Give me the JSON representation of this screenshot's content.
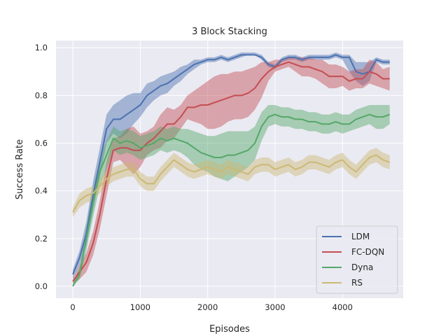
{
  "chart_data": {
    "type": "line",
    "title": "3 Block Stacking",
    "xlabel": "Episodes",
    "ylabel": "Success Rate",
    "xlim": [
      -250,
      4900
    ],
    "ylim": [
      -0.05,
      1.03
    ],
    "xticks": [
      0,
      1000,
      2000,
      3000,
      4000
    ],
    "yticks": [
      0.0,
      0.2,
      0.4,
      0.6,
      0.8,
      1.0
    ],
    "xtick_labels": [
      "0",
      "1000",
      "2000",
      "3000",
      "4000"
    ],
    "ytick_labels": [
      "0.0",
      "0.2",
      "0.4",
      "0.6",
      "0.8",
      "1.0"
    ],
    "grid": true,
    "legend_position": "lower-right",
    "series": [
      {
        "name": "LDM",
        "color": "#4c72b0",
        "x": [
          0,
          100,
          200,
          300,
          400,
          500,
          600,
          700,
          800,
          900,
          1000,
          1100,
          1200,
          1300,
          1400,
          1500,
          1600,
          1700,
          1800,
          1900,
          2000,
          2100,
          2200,
          2300,
          2400,
          2500,
          2600,
          2700,
          2800,
          2900,
          3000,
          3100,
          3200,
          3300,
          3400,
          3500,
          3600,
          3700,
          3800,
          3900,
          4000,
          4100,
          4200,
          4300,
          4400,
          4500,
          4600,
          4700
        ],
        "y": [
          0.05,
          0.12,
          0.22,
          0.38,
          0.52,
          0.66,
          0.7,
          0.7,
          0.72,
          0.74,
          0.76,
          0.8,
          0.82,
          0.84,
          0.85,
          0.87,
          0.89,
          0.91,
          0.93,
          0.94,
          0.95,
          0.95,
          0.96,
          0.95,
          0.96,
          0.97,
          0.97,
          0.97,
          0.96,
          0.93,
          0.92,
          0.95,
          0.96,
          0.96,
          0.95,
          0.96,
          0.96,
          0.96,
          0.96,
          0.97,
          0.96,
          0.96,
          0.9,
          0.89,
          0.9,
          0.95,
          0.94,
          0.94
        ],
        "lower": [
          0.03,
          0.09,
          0.17,
          0.32,
          0.46,
          0.6,
          0.64,
          0.62,
          0.64,
          0.68,
          0.71,
          0.75,
          0.78,
          0.8,
          0.81,
          0.84,
          0.86,
          0.89,
          0.91,
          0.93,
          0.94,
          0.94,
          0.95,
          0.94,
          0.95,
          0.96,
          0.97,
          0.97,
          0.95,
          0.92,
          0.91,
          0.94,
          0.95,
          0.95,
          0.94,
          0.95,
          0.95,
          0.95,
          0.95,
          0.96,
          0.95,
          0.9,
          0.86,
          0.84,
          0.86,
          0.94,
          0.93,
          0.93
        ],
        "upper": [
          0.07,
          0.15,
          0.27,
          0.44,
          0.58,
          0.72,
          0.76,
          0.78,
          0.8,
          0.81,
          0.81,
          0.85,
          0.86,
          0.88,
          0.89,
          0.9,
          0.92,
          0.93,
          0.95,
          0.95,
          0.96,
          0.96,
          0.97,
          0.96,
          0.97,
          0.98,
          0.98,
          0.98,
          0.97,
          0.94,
          0.93,
          0.96,
          0.97,
          0.97,
          0.96,
          0.97,
          0.97,
          0.97,
          0.97,
          0.98,
          0.97,
          0.97,
          0.94,
          0.94,
          0.94,
          0.96,
          0.95,
          0.95
        ]
      },
      {
        "name": "FC-DQN",
        "color": "#c44e52",
        "x": [
          0,
          100,
          200,
          300,
          400,
          500,
          600,
          700,
          800,
          900,
          1000,
          1100,
          1200,
          1300,
          1400,
          1500,
          1600,
          1700,
          1800,
          1900,
          2000,
          2100,
          2200,
          2300,
          2400,
          2500,
          2600,
          2700,
          2800,
          2900,
          3000,
          3100,
          3200,
          3300,
          3400,
          3500,
          3600,
          3700,
          3800,
          3900,
          4000,
          4100,
          4200,
          4300,
          4400,
          4500,
          4600,
          4700
        ],
        "y": [
          0.02,
          0.06,
          0.1,
          0.18,
          0.3,
          0.45,
          0.57,
          0.58,
          0.58,
          0.57,
          0.57,
          0.6,
          0.62,
          0.65,
          0.68,
          0.68,
          0.71,
          0.75,
          0.75,
          0.76,
          0.76,
          0.77,
          0.78,
          0.79,
          0.8,
          0.8,
          0.81,
          0.83,
          0.87,
          0.9,
          0.92,
          0.93,
          0.94,
          0.93,
          0.92,
          0.92,
          0.91,
          0.9,
          0.88,
          0.88,
          0.88,
          0.86,
          0.87,
          0.87,
          0.9,
          0.89,
          0.87,
          0.87
        ],
        "lower": [
          0.01,
          0.03,
          0.06,
          0.13,
          0.24,
          0.38,
          0.52,
          0.53,
          0.5,
          0.47,
          0.5,
          0.55,
          0.57,
          0.58,
          0.61,
          0.62,
          0.66,
          0.7,
          0.69,
          0.68,
          0.66,
          0.66,
          0.67,
          0.69,
          0.7,
          0.7,
          0.71,
          0.74,
          0.79,
          0.86,
          0.9,
          0.91,
          0.92,
          0.9,
          0.88,
          0.88,
          0.87,
          0.85,
          0.83,
          0.83,
          0.84,
          0.82,
          0.83,
          0.83,
          0.85,
          0.84,
          0.83,
          0.82
        ],
        "upper": [
          0.03,
          0.09,
          0.14,
          0.23,
          0.36,
          0.52,
          0.62,
          0.63,
          0.66,
          0.67,
          0.64,
          0.65,
          0.67,
          0.72,
          0.75,
          0.74,
          0.76,
          0.8,
          0.82,
          0.84,
          0.86,
          0.88,
          0.89,
          0.89,
          0.9,
          0.9,
          0.91,
          0.92,
          0.94,
          0.94,
          0.95,
          0.95,
          0.96,
          0.96,
          0.96,
          0.96,
          0.95,
          0.95,
          0.93,
          0.93,
          0.92,
          0.9,
          0.91,
          0.91,
          0.95,
          0.94,
          0.91,
          0.92
        ]
      },
      {
        "name": "Dyna",
        "color": "#55a868",
        "x": [
          0,
          100,
          200,
          300,
          400,
          500,
          600,
          700,
          800,
          900,
          1000,
          1100,
          1200,
          1300,
          1400,
          1500,
          1600,
          1700,
          1800,
          1900,
          2000,
          2100,
          2200,
          2300,
          2400,
          2500,
          2600,
          2700,
          2800,
          2900,
          3000,
          3100,
          3200,
          3300,
          3400,
          3500,
          3600,
          3700,
          3800,
          3900,
          4000,
          4100,
          4200,
          4300,
          4400,
          4500,
          4600,
          4700
        ],
        "y": [
          0.0,
          0.05,
          0.2,
          0.35,
          0.48,
          0.55,
          0.62,
          0.6,
          0.61,
          0.6,
          0.58,
          0.59,
          0.6,
          0.62,
          0.61,
          0.62,
          0.61,
          0.6,
          0.58,
          0.56,
          0.55,
          0.54,
          0.54,
          0.55,
          0.55,
          0.56,
          0.57,
          0.6,
          0.67,
          0.71,
          0.72,
          0.71,
          0.71,
          0.7,
          0.7,
          0.69,
          0.69,
          0.68,
          0.68,
          0.69,
          0.68,
          0.68,
          0.7,
          0.71,
          0.72,
          0.71,
          0.71,
          0.72
        ],
        "lower": [
          0.0,
          0.03,
          0.15,
          0.29,
          0.42,
          0.49,
          0.57,
          0.55,
          0.56,
          0.55,
          0.53,
          0.54,
          0.55,
          0.57,
          0.56,
          0.57,
          0.56,
          0.54,
          0.51,
          0.49,
          0.48,
          0.46,
          0.45,
          0.44,
          0.46,
          0.48,
          0.5,
          0.53,
          0.61,
          0.67,
          0.68,
          0.67,
          0.67,
          0.66,
          0.66,
          0.65,
          0.65,
          0.64,
          0.64,
          0.65,
          0.64,
          0.65,
          0.66,
          0.67,
          0.68,
          0.66,
          0.66,
          0.68
        ],
        "upper": [
          0.01,
          0.08,
          0.25,
          0.41,
          0.54,
          0.61,
          0.67,
          0.65,
          0.66,
          0.65,
          0.63,
          0.64,
          0.65,
          0.67,
          0.66,
          0.67,
          0.66,
          0.66,
          0.65,
          0.64,
          0.63,
          0.63,
          0.64,
          0.65,
          0.65,
          0.65,
          0.65,
          0.67,
          0.73,
          0.76,
          0.76,
          0.75,
          0.75,
          0.74,
          0.74,
          0.73,
          0.73,
          0.72,
          0.72,
          0.73,
          0.72,
          0.72,
          0.74,
          0.75,
          0.76,
          0.76,
          0.76,
          0.76
        ]
      },
      {
        "name": "RS",
        "color": "#ccb974",
        "x": [
          0,
          100,
          200,
          300,
          400,
          500,
          600,
          700,
          800,
          900,
          1000,
          1100,
          1200,
          1300,
          1400,
          1500,
          1600,
          1700,
          1800,
          1900,
          2000,
          2100,
          2200,
          2300,
          2400,
          2500,
          2600,
          2700,
          2800,
          2900,
          3000,
          3100,
          3200,
          3300,
          3400,
          3500,
          3600,
          3700,
          3800,
          3900,
          4000,
          4100,
          4200,
          4300,
          4400,
          4500,
          4600,
          4700
        ],
        "y": [
          0.31,
          0.36,
          0.38,
          0.39,
          0.42,
          0.45,
          0.47,
          0.48,
          0.49,
          0.49,
          0.45,
          0.43,
          0.43,
          0.47,
          0.5,
          0.53,
          0.51,
          0.49,
          0.48,
          0.49,
          0.5,
          0.49,
          0.48,
          0.5,
          0.49,
          0.48,
          0.47,
          0.5,
          0.51,
          0.51,
          0.49,
          0.5,
          0.51,
          0.49,
          0.5,
          0.52,
          0.52,
          0.51,
          0.5,
          0.52,
          0.53,
          0.5,
          0.48,
          0.51,
          0.54,
          0.55,
          0.53,
          0.52
        ],
        "lower": [
          0.29,
          0.33,
          0.35,
          0.36,
          0.39,
          0.42,
          0.44,
          0.45,
          0.46,
          0.46,
          0.42,
          0.4,
          0.4,
          0.44,
          0.47,
          0.5,
          0.48,
          0.46,
          0.45,
          0.46,
          0.47,
          0.46,
          0.45,
          0.47,
          0.46,
          0.45,
          0.44,
          0.47,
          0.48,
          0.48,
          0.46,
          0.47,
          0.48,
          0.46,
          0.47,
          0.49,
          0.49,
          0.48,
          0.47,
          0.49,
          0.5,
          0.47,
          0.45,
          0.48,
          0.51,
          0.52,
          0.5,
          0.49
        ],
        "upper": [
          0.33,
          0.39,
          0.41,
          0.42,
          0.45,
          0.48,
          0.5,
          0.51,
          0.52,
          0.52,
          0.48,
          0.46,
          0.46,
          0.5,
          0.53,
          0.56,
          0.54,
          0.52,
          0.51,
          0.52,
          0.53,
          0.52,
          0.51,
          0.53,
          0.52,
          0.51,
          0.5,
          0.53,
          0.54,
          0.54,
          0.52,
          0.53,
          0.54,
          0.52,
          0.53,
          0.55,
          0.55,
          0.54,
          0.53,
          0.55,
          0.56,
          0.53,
          0.51,
          0.54,
          0.57,
          0.58,
          0.56,
          0.55
        ]
      }
    ]
  }
}
